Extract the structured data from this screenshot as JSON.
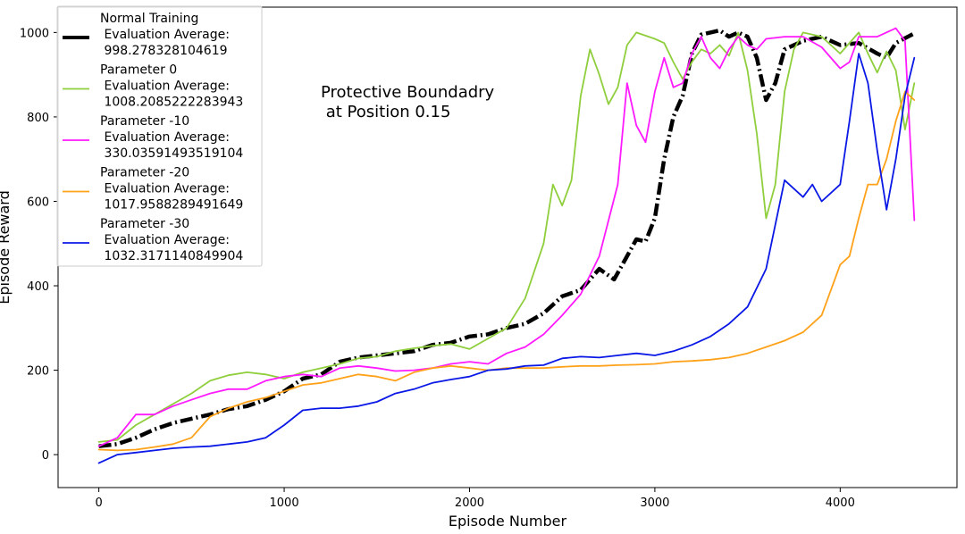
{
  "chart_data": {
    "type": "line",
    "title": "",
    "xlabel": "Episode Number",
    "ylabel": "Episode Reward",
    "xlim": [
      -220,
      4630
    ],
    "ylim": [
      -78,
      1060
    ],
    "x_ticks": [
      0,
      1000,
      2000,
      3000,
      4000
    ],
    "y_ticks": [
      0,
      200,
      400,
      600,
      800,
      1000
    ],
    "grid": false,
    "legend_position": "upper-left",
    "annotation": "Protective Boundadry\n at Position 0.15",
    "series": [
      {
        "name": "Normal Training\n Evaluation Average:\n 998.278328104619",
        "color": "#000000",
        "style": "dashdot-thick",
        "points": [
          [
            0,
            20
          ],
          [
            100,
            25
          ],
          [
            200,
            40
          ],
          [
            300,
            60
          ],
          [
            400,
            75
          ],
          [
            500,
            85
          ],
          [
            600,
            95
          ],
          [
            700,
            108
          ],
          [
            800,
            115
          ],
          [
            900,
            130
          ],
          [
            1000,
            150
          ],
          [
            1100,
            180
          ],
          [
            1200,
            190
          ],
          [
            1300,
            220
          ],
          [
            1400,
            230
          ],
          [
            1500,
            235
          ],
          [
            1600,
            240
          ],
          [
            1700,
            245
          ],
          [
            1800,
            260
          ],
          [
            1900,
            265
          ],
          [
            2000,
            280
          ],
          [
            2100,
            285
          ],
          [
            2200,
            300
          ],
          [
            2300,
            310
          ],
          [
            2400,
            335
          ],
          [
            2500,
            375
          ],
          [
            2600,
            390
          ],
          [
            2700,
            440
          ],
          [
            2780,
            415
          ],
          [
            2850,
            470
          ],
          [
            2900,
            510
          ],
          [
            2950,
            505
          ],
          [
            3000,
            560
          ],
          [
            3050,
            700
          ],
          [
            3100,
            800
          ],
          [
            3150,
            850
          ],
          [
            3200,
            950
          ],
          [
            3250,
            995
          ],
          [
            3300,
            1000
          ],
          [
            3350,
            1005
          ],
          [
            3400,
            990
          ],
          [
            3450,
            1000
          ],
          [
            3500,
            990
          ],
          [
            3550,
            940
          ],
          [
            3600,
            840
          ],
          [
            3650,
            880
          ],
          [
            3700,
            960
          ],
          [
            3800,
            980
          ],
          [
            3900,
            990
          ],
          [
            4000,
            970
          ],
          [
            4100,
            975
          ],
          [
            4200,
            950
          ],
          [
            4250,
            940
          ],
          [
            4300,
            975
          ],
          [
            4400,
            998
          ]
        ]
      },
      {
        "name": "Parameter 0\n Evaluation Average:\n 1008.2085222283943",
        "color": "#8fce3c",
        "style": "solid",
        "points": [
          [
            0,
            30
          ],
          [
            100,
            35
          ],
          [
            200,
            70
          ],
          [
            300,
            95
          ],
          [
            400,
            120
          ],
          [
            500,
            145
          ],
          [
            600,
            175
          ],
          [
            700,
            188
          ],
          [
            800,
            195
          ],
          [
            900,
            190
          ],
          [
            1000,
            180
          ],
          [
            1100,
            195
          ],
          [
            1200,
            205
          ],
          [
            1300,
            215
          ],
          [
            1400,
            228
          ],
          [
            1500,
            232
          ],
          [
            1600,
            245
          ],
          [
            1700,
            252
          ],
          [
            1800,
            258
          ],
          [
            1900,
            262
          ],
          [
            2000,
            250
          ],
          [
            2100,
            275
          ],
          [
            2200,
            300
          ],
          [
            2300,
            370
          ],
          [
            2400,
            500
          ],
          [
            2450,
            640
          ],
          [
            2500,
            590
          ],
          [
            2550,
            650
          ],
          [
            2600,
            850
          ],
          [
            2650,
            960
          ],
          [
            2700,
            900
          ],
          [
            2750,
            830
          ],
          [
            2800,
            870
          ],
          [
            2850,
            970
          ],
          [
            2900,
            1000
          ],
          [
            3000,
            985
          ],
          [
            3050,
            975
          ],
          [
            3100,
            930
          ],
          [
            3150,
            890
          ],
          [
            3200,
            930
          ],
          [
            3250,
            960
          ],
          [
            3300,
            950
          ],
          [
            3350,
            970
          ],
          [
            3400,
            945
          ],
          [
            3450,
            1000
          ],
          [
            3500,
            910
          ],
          [
            3550,
            760
          ],
          [
            3600,
            560
          ],
          [
            3650,
            640
          ],
          [
            3700,
            860
          ],
          [
            3750,
            960
          ],
          [
            3800,
            1000
          ],
          [
            3900,
            990
          ],
          [
            4000,
            950
          ],
          [
            4100,
            1000
          ],
          [
            4150,
            950
          ],
          [
            4200,
            905
          ],
          [
            4250,
            955
          ],
          [
            4300,
            910
          ],
          [
            4350,
            770
          ],
          [
            4400,
            880
          ]
        ]
      },
      {
        "name": "Parameter -10\n Evaluation Average:\n 330.03591493519104",
        "color": "#ff1aff",
        "style": "solid",
        "points": [
          [
            0,
            20
          ],
          [
            100,
            40
          ],
          [
            200,
            95
          ],
          [
            300,
            95
          ],
          [
            400,
            115
          ],
          [
            500,
            130
          ],
          [
            600,
            145
          ],
          [
            700,
            155
          ],
          [
            800,
            155
          ],
          [
            900,
            175
          ],
          [
            1000,
            185
          ],
          [
            1100,
            190
          ],
          [
            1200,
            185
          ],
          [
            1300,
            205
          ],
          [
            1400,
            210
          ],
          [
            1500,
            205
          ],
          [
            1600,
            198
          ],
          [
            1700,
            200
          ],
          [
            1800,
            205
          ],
          [
            1900,
            215
          ],
          [
            2000,
            220
          ],
          [
            2100,
            215
          ],
          [
            2200,
            240
          ],
          [
            2300,
            255
          ],
          [
            2400,
            285
          ],
          [
            2500,
            330
          ],
          [
            2600,
            380
          ],
          [
            2700,
            470
          ],
          [
            2800,
            640
          ],
          [
            2850,
            880
          ],
          [
            2900,
            780
          ],
          [
            2950,
            740
          ],
          [
            3000,
            860
          ],
          [
            3050,
            940
          ],
          [
            3100,
            870
          ],
          [
            3150,
            880
          ],
          [
            3200,
            950
          ],
          [
            3250,
            990
          ],
          [
            3300,
            940
          ],
          [
            3350,
            915
          ],
          [
            3400,
            960
          ],
          [
            3450,
            990
          ],
          [
            3500,
            970
          ],
          [
            3550,
            960
          ],
          [
            3600,
            985
          ],
          [
            3700,
            990
          ],
          [
            3800,
            990
          ],
          [
            3900,
            965
          ],
          [
            4000,
            915
          ],
          [
            4050,
            930
          ],
          [
            4100,
            990
          ],
          [
            4200,
            990
          ],
          [
            4300,
            1010
          ],
          [
            4350,
            980
          ],
          [
            4400,
            555
          ]
        ]
      },
      {
        "name": "Parameter -20\n Evaluation Average:\n 1017.9588289491649",
        "color": "#ffa21a",
        "style": "solid",
        "points": [
          [
            0,
            12
          ],
          [
            100,
            10
          ],
          [
            200,
            12
          ],
          [
            300,
            18
          ],
          [
            400,
            25
          ],
          [
            500,
            40
          ],
          [
            600,
            90
          ],
          [
            700,
            110
          ],
          [
            800,
            125
          ],
          [
            900,
            135
          ],
          [
            1000,
            150
          ],
          [
            1100,
            165
          ],
          [
            1200,
            170
          ],
          [
            1300,
            180
          ],
          [
            1400,
            190
          ],
          [
            1500,
            185
          ],
          [
            1600,
            175
          ],
          [
            1700,
            195
          ],
          [
            1800,
            205
          ],
          [
            1900,
            210
          ],
          [
            2000,
            205
          ],
          [
            2100,
            200
          ],
          [
            2200,
            205
          ],
          [
            2300,
            205
          ],
          [
            2400,
            205
          ],
          [
            2500,
            208
          ],
          [
            2600,
            210
          ],
          [
            2700,
            210
          ],
          [
            2800,
            212
          ],
          [
            2900,
            213
          ],
          [
            3000,
            215
          ],
          [
            3100,
            220
          ],
          [
            3200,
            222
          ],
          [
            3300,
            225
          ],
          [
            3400,
            230
          ],
          [
            3500,
            240
          ],
          [
            3600,
            255
          ],
          [
            3700,
            270
          ],
          [
            3800,
            290
          ],
          [
            3900,
            330
          ],
          [
            4000,
            450
          ],
          [
            4050,
            470
          ],
          [
            4100,
            560
          ],
          [
            4150,
            640
          ],
          [
            4200,
            640
          ],
          [
            4250,
            700
          ],
          [
            4300,
            790
          ],
          [
            4350,
            860
          ],
          [
            4400,
            840
          ]
        ]
      },
      {
        "name": "Parameter -30\n Evaluation Average:\n 1032.3171140849904",
        "color": "#0a18e6",
        "style": "solid",
        "points": [
          [
            0,
            -20
          ],
          [
            100,
            0
          ],
          [
            200,
            5
          ],
          [
            300,
            10
          ],
          [
            400,
            15
          ],
          [
            500,
            18
          ],
          [
            600,
            20
          ],
          [
            700,
            25
          ],
          [
            800,
            30
          ],
          [
            900,
            40
          ],
          [
            1000,
            70
          ],
          [
            1100,
            105
          ],
          [
            1200,
            110
          ],
          [
            1300,
            110
          ],
          [
            1400,
            115
          ],
          [
            1500,
            125
          ],
          [
            1600,
            145
          ],
          [
            1700,
            155
          ],
          [
            1800,
            170
          ],
          [
            1900,
            178
          ],
          [
            2000,
            185
          ],
          [
            2100,
            200
          ],
          [
            2200,
            203
          ],
          [
            2300,
            210
          ],
          [
            2400,
            212
          ],
          [
            2500,
            228
          ],
          [
            2600,
            232
          ],
          [
            2700,
            230
          ],
          [
            2800,
            235
          ],
          [
            2900,
            240
          ],
          [
            3000,
            235
          ],
          [
            3100,
            245
          ],
          [
            3200,
            260
          ],
          [
            3300,
            280
          ],
          [
            3400,
            310
          ],
          [
            3500,
            350
          ],
          [
            3600,
            440
          ],
          [
            3700,
            650
          ],
          [
            3750,
            630
          ],
          [
            3800,
            610
          ],
          [
            3850,
            640
          ],
          [
            3900,
            600
          ],
          [
            4000,
            640
          ],
          [
            4050,
            790
          ],
          [
            4100,
            950
          ],
          [
            4150,
            880
          ],
          [
            4200,
            720
          ],
          [
            4250,
            580
          ],
          [
            4300,
            700
          ],
          [
            4350,
            850
          ],
          [
            4400,
            940
          ]
        ]
      }
    ]
  }
}
